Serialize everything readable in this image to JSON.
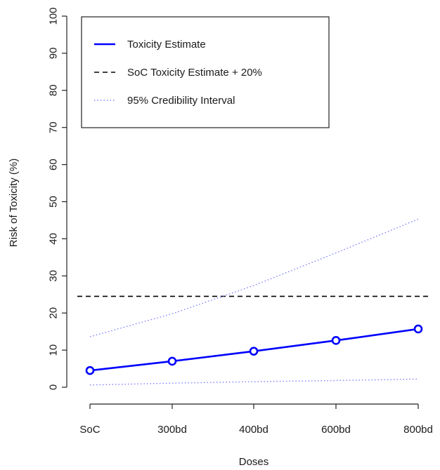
{
  "chart_data": {
    "type": "line",
    "categories": [
      "SoC",
      "300bd",
      "400bd",
      "600bd",
      "800bd"
    ],
    "xlabel": "Doses",
    "ylabel": "Risk of Toxicity (%)",
    "ylim": [
      0,
      100
    ],
    "yticks": [
      0,
      10,
      20,
      30,
      40,
      50,
      60,
      70,
      80,
      90,
      100
    ],
    "grid": false,
    "legend_position": "top-left",
    "series": [
      {
        "name": "Toxicity Estimate",
        "style": "solid",
        "markers": true,
        "color": "#0000ff",
        "values": [
          4.5,
          7.0,
          9.7,
          12.6,
          15.7
        ]
      },
      {
        "name": "SoC Toxicity Estimate + 20%",
        "style": "dashed",
        "color": "#000000",
        "values": [
          24.5,
          24.5,
          24.5,
          24.5,
          24.5
        ]
      },
      {
        "name": "95% Credibility Interval",
        "style": "dotted",
        "color": "#8080ff",
        "values": [
          13.6,
          19.8,
          27.4,
          36.2,
          45.3
        ]
      },
      {
        "name": "",
        "style": "dotted",
        "color": "#8080ff",
        "values": [
          0.6,
          1.1,
          1.5,
          1.8,
          2.2
        ]
      }
    ]
  }
}
